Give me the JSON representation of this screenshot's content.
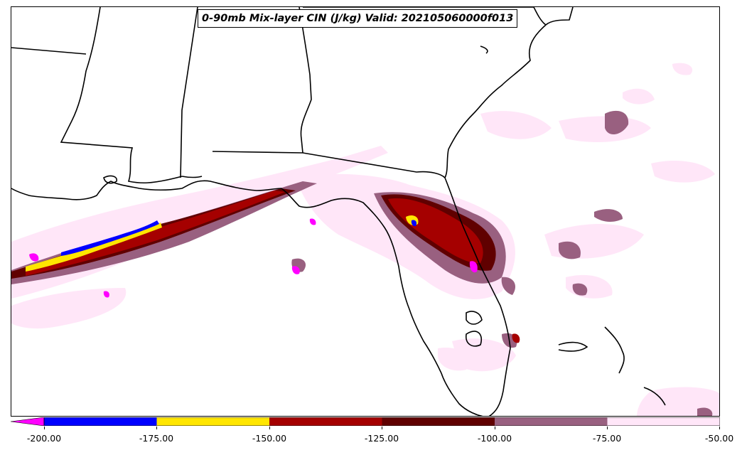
{
  "title": "0-90mb Mix-layer CIN (J/kg) Valid: 202105060000f013",
  "colorbar": {
    "extend": "min",
    "extend_color": "#ff00ff",
    "bins": [
      {
        "from": -200,
        "to": -175,
        "color": "#0000ff"
      },
      {
        "from": -175,
        "to": -150,
        "color": "#ffe600"
      },
      {
        "from": -150,
        "to": -125,
        "color": "#a50000"
      },
      {
        "from": -125,
        "to": -100,
        "color": "#600000"
      },
      {
        "from": -100,
        "to": -75,
        "color": "#996080"
      },
      {
        "from": -75,
        "to": -50,
        "color": "#ffe6f8"
      }
    ],
    "tick_labels": [
      "-200.00",
      "-175.00",
      "-150.00",
      "-125.00",
      "-100.00",
      "-75.00",
      "-50.00"
    ]
  },
  "map": {
    "region": "Southeastern United States / Florida",
    "state_lines": "black",
    "coastlines": "black"
  }
}
